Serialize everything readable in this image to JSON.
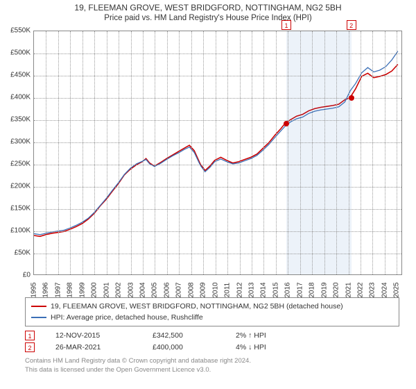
{
  "title_main": "19, FLEEMAN GROVE, WEST BRIDGFORD, NOTTINGHAM, NG2 5BH",
  "title_sub": "Price paid vs. HM Land Registry's House Price Index (HPI)",
  "chart": {
    "type": "line",
    "x_start_year": 1995,
    "x_end_year": 2025.5,
    "y_min": 0,
    "y_max": 550000,
    "y_tick_step": 50000,
    "y_tick_labels": [
      "£0",
      "£50K",
      "£100K",
      "£150K",
      "£200K",
      "£250K",
      "£300K",
      "£350K",
      "£400K",
      "£450K",
      "£500K",
      "£550K"
    ],
    "x_ticks": [
      1995,
      1996,
      1997,
      1998,
      1999,
      2000,
      2001,
      2002,
      2003,
      2004,
      2005,
      2006,
      2007,
      2008,
      2009,
      2010,
      2011,
      2012,
      2013,
      2014,
      2015,
      2016,
      2017,
      2018,
      2019,
      2020,
      2021,
      2022,
      2023,
      2024,
      2025
    ],
    "background_color": "#ffffff",
    "grid_color": "#999999",
    "axis_color": "#888888",
    "shade_color": "rgba(70,130,200,0.10)",
    "shade_ranges": [
      [
        2015.87,
        2021.24
      ]
    ],
    "series": [
      {
        "name": "property",
        "label": "19, FLEEMAN GROVE, WEST BRIDGFORD, NOTTINGHAM, NG2 5BH (detached house)",
        "color": "#cc0000",
        "line_width": 1.6,
        "data": [
          [
            1995.0,
            88000
          ],
          [
            1995.5,
            86000
          ],
          [
            1996.0,
            90000
          ],
          [
            1996.5,
            93000
          ],
          [
            1997.0,
            95000
          ],
          [
            1997.5,
            97000
          ],
          [
            1998.0,
            102000
          ],
          [
            1998.5,
            108000
          ],
          [
            1999.0,
            115000
          ],
          [
            1999.5,
            125000
          ],
          [
            2000.0,
            138000
          ],
          [
            2000.5,
            155000
          ],
          [
            2001.0,
            170000
          ],
          [
            2001.5,
            188000
          ],
          [
            2002.0,
            205000
          ],
          [
            2002.5,
            225000
          ],
          [
            2003.0,
            238000
          ],
          [
            2003.5,
            248000
          ],
          [
            2004.0,
            255000
          ],
          [
            2004.3,
            262000
          ],
          [
            2004.6,
            252000
          ],
          [
            2005.0,
            245000
          ],
          [
            2005.5,
            253000
          ],
          [
            2006.0,
            262000
          ],
          [
            2006.5,
            270000
          ],
          [
            2007.0,
            278000
          ],
          [
            2007.5,
            286000
          ],
          [
            2007.9,
            292000
          ],
          [
            2008.3,
            280000
          ],
          [
            2008.8,
            250000
          ],
          [
            2009.2,
            235000
          ],
          [
            2009.6,
            245000
          ],
          [
            2010.0,
            258000
          ],
          [
            2010.5,
            265000
          ],
          [
            2011.0,
            258000
          ],
          [
            2011.5,
            252000
          ],
          [
            2012.0,
            255000
          ],
          [
            2012.5,
            260000
          ],
          [
            2013.0,
            265000
          ],
          [
            2013.5,
            272000
          ],
          [
            2014.0,
            285000
          ],
          [
            2014.5,
            298000
          ],
          [
            2015.0,
            315000
          ],
          [
            2015.5,
            330000
          ],
          [
            2015.87,
            342500
          ],
          [
            2016.3,
            350000
          ],
          [
            2016.8,
            358000
          ],
          [
            2017.3,
            362000
          ],
          [
            2017.8,
            370000
          ],
          [
            2018.3,
            375000
          ],
          [
            2018.8,
            378000
          ],
          [
            2019.3,
            380000
          ],
          [
            2019.8,
            382000
          ],
          [
            2020.3,
            385000
          ],
          [
            2020.8,
            395000
          ],
          [
            2021.24,
            400000
          ],
          [
            2021.7,
            420000
          ],
          [
            2022.2,
            448000
          ],
          [
            2022.7,
            455000
          ],
          [
            2023.2,
            445000
          ],
          [
            2023.7,
            448000
          ],
          [
            2024.2,
            452000
          ],
          [
            2024.7,
            460000
          ],
          [
            2025.2,
            475000
          ]
        ]
      },
      {
        "name": "hpi",
        "label": "HPI: Average price, detached house, Rushcliffe",
        "color": "#3b6fb6",
        "line_width": 1.3,
        "data": [
          [
            1995.0,
            92000
          ],
          [
            1995.5,
            90000
          ],
          [
            1996.0,
            93000
          ],
          [
            1996.5,
            96000
          ],
          [
            1997.0,
            98000
          ],
          [
            1997.5,
            100000
          ],
          [
            1998.0,
            105000
          ],
          [
            1998.5,
            111000
          ],
          [
            1999.0,
            118000
          ],
          [
            1999.5,
            127000
          ],
          [
            2000.0,
            140000
          ],
          [
            2000.5,
            156000
          ],
          [
            2001.0,
            172000
          ],
          [
            2001.5,
            190000
          ],
          [
            2002.0,
            207000
          ],
          [
            2002.5,
            226000
          ],
          [
            2003.0,
            240000
          ],
          [
            2003.5,
            250000
          ],
          [
            2004.0,
            256000
          ],
          [
            2004.3,
            260000
          ],
          [
            2004.6,
            250000
          ],
          [
            2005.0,
            244000
          ],
          [
            2005.5,
            251000
          ],
          [
            2006.0,
            260000
          ],
          [
            2006.5,
            268000
          ],
          [
            2007.0,
            275000
          ],
          [
            2007.5,
            283000
          ],
          [
            2007.9,
            288000
          ],
          [
            2008.3,
            276000
          ],
          [
            2008.8,
            247000
          ],
          [
            2009.2,
            232000
          ],
          [
            2009.6,
            242000
          ],
          [
            2010.0,
            255000
          ],
          [
            2010.5,
            261000
          ],
          [
            2011.0,
            255000
          ],
          [
            2011.5,
            250000
          ],
          [
            2012.0,
            252000
          ],
          [
            2012.5,
            257000
          ],
          [
            2013.0,
            262000
          ],
          [
            2013.5,
            269000
          ],
          [
            2014.0,
            281000
          ],
          [
            2014.5,
            294000
          ],
          [
            2015.0,
            310000
          ],
          [
            2015.5,
            325000
          ],
          [
            2015.87,
            336000
          ],
          [
            2016.3,
            345000
          ],
          [
            2016.8,
            352000
          ],
          [
            2017.3,
            356000
          ],
          [
            2017.8,
            364000
          ],
          [
            2018.3,
            369000
          ],
          [
            2018.8,
            372000
          ],
          [
            2019.3,
            374000
          ],
          [
            2019.8,
            376000
          ],
          [
            2020.3,
            379000
          ],
          [
            2020.8,
            390000
          ],
          [
            2021.24,
            415000
          ],
          [
            2021.7,
            432000
          ],
          [
            2022.2,
            456000
          ],
          [
            2022.7,
            468000
          ],
          [
            2023.2,
            458000
          ],
          [
            2023.7,
            462000
          ],
          [
            2024.2,
            470000
          ],
          [
            2024.7,
            485000
          ],
          [
            2025.2,
            505000
          ]
        ]
      }
    ],
    "markers": [
      {
        "id": "1",
        "x": 2015.87,
        "y": 342500,
        "color": "#cc0000"
      },
      {
        "id": "2",
        "x": 2021.24,
        "y": 400000,
        "color": "#cc0000"
      }
    ]
  },
  "legend": {
    "rows": [
      {
        "color": "#cc0000",
        "label": "19, FLEEMAN GROVE, WEST BRIDGFORD, NOTTINGHAM, NG2 5BH (detached house)"
      },
      {
        "color": "#3b6fb6",
        "label": "HPI: Average price, detached house, Rushcliffe"
      }
    ]
  },
  "transactions": [
    {
      "id": "1",
      "color": "#cc0000",
      "date": "12-NOV-2015",
      "price": "£342,500",
      "delta": "2% ↑ HPI"
    },
    {
      "id": "2",
      "color": "#cc0000",
      "date": "26-MAR-2021",
      "price": "£400,000",
      "delta": "4% ↓ HPI"
    }
  ],
  "footer": {
    "line1": "Contains HM Land Registry data © Crown copyright and database right 2024.",
    "line2": "This data is licensed under the Open Government Licence v3.0."
  }
}
